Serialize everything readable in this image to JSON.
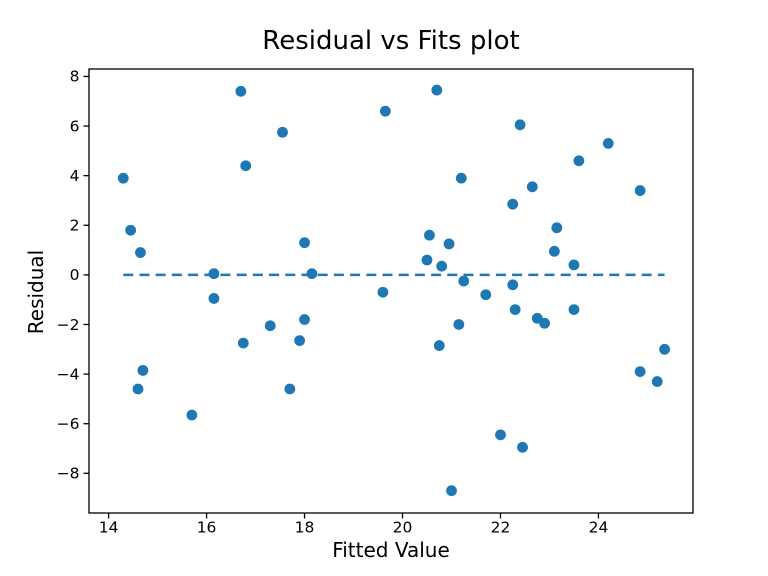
{
  "figure": {
    "background_color": "#ffffff",
    "text_color": "#000000"
  },
  "chart_data": {
    "type": "scatter",
    "title": "Residual vs Fits plot",
    "xlabel": "Fitted Value",
    "ylabel": "Residual",
    "xlim": [
      13.6,
      25.93
    ],
    "ylim": [
      -9.6,
      8.3
    ],
    "x_ticks": [
      14,
      16,
      18,
      20,
      22,
      24
    ],
    "y_ticks": [
      8,
      6,
      4,
      2,
      0,
      -2,
      -4,
      -6,
      -8
    ],
    "grid": false,
    "legend": false,
    "marker_color": "#1f77b4",
    "marker_shape": "circle",
    "zero_line": {
      "y": 0,
      "style": "dashed",
      "color": "#1f77b4",
      "spans": "data-x-range"
    },
    "points": [
      [
        14.3,
        3.9
      ],
      [
        14.45,
        1.8
      ],
      [
        14.65,
        0.9
      ],
      [
        14.6,
        -4.6
      ],
      [
        14.7,
        -3.85
      ],
      [
        15.7,
        -5.65
      ],
      [
        16.15,
        0.05
      ],
      [
        16.15,
        -0.95
      ],
      [
        16.7,
        7.4
      ],
      [
        16.75,
        -2.75
      ],
      [
        16.8,
        4.4
      ],
      [
        17.3,
        -2.05
      ],
      [
        17.55,
        5.75
      ],
      [
        17.7,
        -4.6
      ],
      [
        17.9,
        -2.65
      ],
      [
        18.0,
        1.3
      ],
      [
        18.0,
        -1.8
      ],
      [
        18.15,
        0.05
      ],
      [
        19.6,
        -0.7
      ],
      [
        19.65,
        6.6
      ],
      [
        20.5,
        0.6
      ],
      [
        20.55,
        1.6
      ],
      [
        20.7,
        7.45
      ],
      [
        20.75,
        -2.85
      ],
      [
        20.8,
        0.35
      ],
      [
        20.95,
        1.25
      ],
      [
        21.0,
        -8.7
      ],
      [
        21.15,
        -2.0
      ],
      [
        21.2,
        3.9
      ],
      [
        21.25,
        -0.25
      ],
      [
        21.7,
        -0.8
      ],
      [
        22.0,
        -6.45
      ],
      [
        22.25,
        2.85
      ],
      [
        22.25,
        -0.4
      ],
      [
        22.3,
        -1.4
      ],
      [
        22.4,
        6.05
      ],
      [
        22.45,
        -6.95
      ],
      [
        22.65,
        3.55
      ],
      [
        22.75,
        -1.75
      ],
      [
        22.9,
        -1.95
      ],
      [
        23.1,
        0.95
      ],
      [
        23.15,
        1.9
      ],
      [
        23.5,
        0.4
      ],
      [
        23.5,
        -1.4
      ],
      [
        23.6,
        4.6
      ],
      [
        24.2,
        5.3
      ],
      [
        24.85,
        3.4
      ],
      [
        24.85,
        -3.9
      ],
      [
        25.2,
        -4.3
      ],
      [
        25.35,
        -3.0
      ]
    ]
  }
}
